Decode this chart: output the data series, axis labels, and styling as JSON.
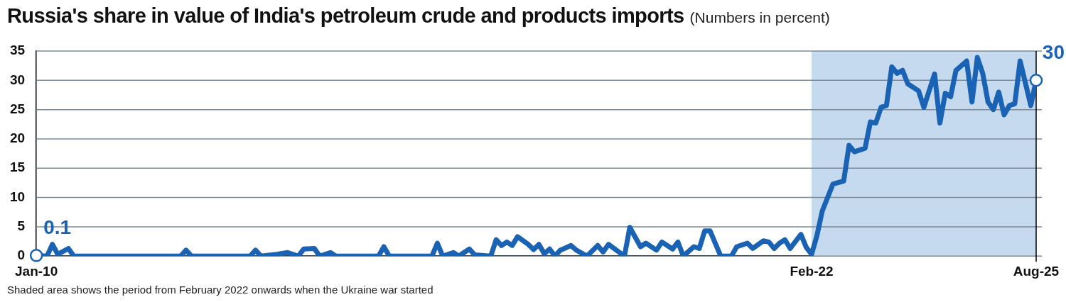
{
  "chart_data": {
    "type": "line",
    "title": "Russia's share in value of India's petroleum crude and products imports",
    "subtitle": "(Numbers in percent)",
    "x": [
      "2010-01",
      "2010-03",
      "2010-04",
      "2010-05",
      "2010-07",
      "2010-08",
      "2012-04",
      "2012-05",
      "2012-06",
      "2013-05",
      "2013-06",
      "2013-07",
      "2013-10",
      "2013-12",
      "2014-01",
      "2014-02",
      "2014-03",
      "2014-05",
      "2014-06",
      "2014-08",
      "2014-09",
      "2015-05",
      "2015-06",
      "2015-07",
      "2016-03",
      "2016-04",
      "2016-05",
      "2016-07",
      "2016-08",
      "2016-10",
      "2016-11",
      "2017-02",
      "2017-03",
      "2017-04",
      "2017-05",
      "2017-06",
      "2017-07",
      "2017-09",
      "2017-10",
      "2017-11",
      "2017-12",
      "2018-01",
      "2018-02",
      "2018-03",
      "2018-05",
      "2018-06",
      "2018-08",
      "2018-10",
      "2018-11",
      "2018-12",
      "2019-03",
      "2019-04",
      "2019-06",
      "2019-07",
      "2019-09",
      "2019-10",
      "2019-12",
      "2020-01",
      "2020-02",
      "2020-04",
      "2020-05",
      "2020-06",
      "2020-07",
      "2020-09",
      "2020-11",
      "2020-12",
      "2021-02",
      "2021-03",
      "2021-05",
      "2021-06",
      "2021-07",
      "2021-08",
      "2021-09",
      "2021-10",
      "2021-12",
      "2022-01",
      "2022-02",
      "2022-03",
      "2022-04",
      "2022-06",
      "2022-08",
      "2022-09",
      "2022-10",
      "2022-12",
      "2023-01",
      "2023-02",
      "2023-03",
      "2023-04",
      "2023-05",
      "2023-06",
      "2023-07",
      "2023-08",
      "2023-10",
      "2023-11",
      "2024-01",
      "2024-02",
      "2024-03",
      "2024-04",
      "2024-05",
      "2024-07",
      "2024-08",
      "2024-09",
      "2024-10",
      "2024-11",
      "2024-12",
      "2025-01",
      "2025-02",
      "2025-03",
      "2025-04",
      "2025-05",
      "2025-07",
      "2025-08"
    ],
    "series": [
      {
        "color": "#1a62b4",
        "values": [
          0.1,
          0,
          2.0,
          0.3,
          1.3,
          0,
          0,
          1.0,
          0,
          0,
          1.0,
          0,
          0.3,
          0.6,
          0.3,
          0,
          1.2,
          1.3,
          0,
          0.6,
          0,
          0,
          1.6,
          0,
          0,
          2.2,
          0,
          0.6,
          0,
          1.2,
          0.2,
          0,
          2.8,
          1.8,
          2.4,
          1.8,
          3.3,
          2.0,
          1.1,
          2.0,
          0.4,
          1.2,
          0,
          1.0,
          1.8,
          1.0,
          0,
          1.8,
          0.7,
          2.0,
          0,
          4.9,
          1.6,
          2.2,
          1.0,
          2.4,
          1.2,
          2.4,
          0,
          1.6,
          1.3,
          4.3,
          4.3,
          0,
          0,
          1.6,
          2.2,
          1.3,
          2.6,
          2.4,
          1.3,
          2.2,
          2.8,
          1.3,
          3.7,
          1.5,
          0.3,
          3.5,
          7.7,
          12.3,
          12.8,
          18.9,
          17.8,
          18.4,
          22.9,
          22.7,
          25.4,
          25.7,
          32.3,
          31.2,
          31.7,
          29.4,
          28.2,
          25.4,
          31.1,
          22.7,
          27.8,
          27.2,
          31.7,
          33.3,
          26.3,
          33.9,
          31.2,
          26.3,
          25.0,
          28.0,
          24.1,
          25.7,
          26.0,
          33.3,
          25.7,
          30
        ]
      }
    ],
    "xlim": [
      "2010-01",
      "2025-08"
    ],
    "xticks": [
      {
        "value": "2010-01",
        "label": "Jan-10"
      },
      {
        "value": "2022-02",
        "label": "Feb-22"
      },
      {
        "value": "2025-08",
        "label": "Aug-25"
      }
    ],
    "ylim": [
      0,
      35
    ],
    "yticks": [
      0,
      5,
      10,
      15,
      20,
      25,
      30,
      35
    ],
    "grid": "y",
    "bands": [
      {
        "axis": "x",
        "from": "2022-02",
        "to": "2025-08",
        "color": "#c6daef"
      }
    ],
    "ref_lines": [
      {
        "axis": "x",
        "value": "2025-08",
        "color": "#000000"
      }
    ],
    "annotations": [
      {
        "text": "0.1",
        "x": "2010-01",
        "y": 0.1
      },
      {
        "text": "30",
        "x": "2025-08",
        "y": 30
      },
      "Shaded area shows the period from February 2022 onwards when the Ukraine war started"
    ]
  }
}
